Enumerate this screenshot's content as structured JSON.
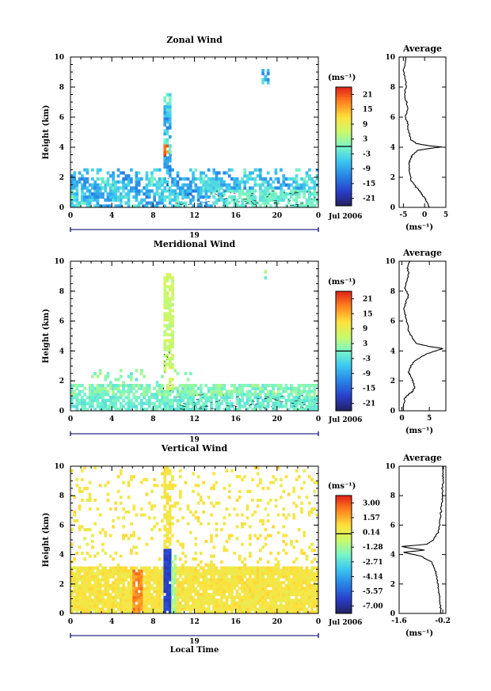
{
  "chart_data": [
    {
      "type": "heatmap",
      "title": "Zonal Wind",
      "ylabel": "Height (km)",
      "colorbar_unit": "(ms⁻¹)",
      "colorbar_ticks": [
        "21",
        "15",
        "9",
        "3",
        "-3",
        "-9",
        "-15",
        "-21"
      ],
      "xticks": [
        "0",
        "4",
        "8",
        "12",
        "16",
        "20",
        "0"
      ],
      "yticks": [
        "0",
        "2",
        "4",
        "6",
        "8",
        "10"
      ],
      "day_label": "19",
      "date_label": "Jul 2006",
      "xlim": [
        0,
        24
      ],
      "ylim": [
        0,
        10
      ],
      "clim": [
        -24,
        24
      ],
      "profile": {
        "title": "Average",
        "xlabel": "(ms⁻¹)",
        "xticks": [
          "-5",
          "0",
          "5"
        ],
        "yticks": [
          "0",
          "2",
          "4",
          "6",
          "8",
          "10"
        ],
        "xlim": [
          -6,
          5
        ],
        "points": [
          [
            1.2,
            0.0
          ],
          [
            0.8,
            0.2
          ],
          [
            0.3,
            0.5
          ],
          [
            -0.5,
            0.8
          ],
          [
            -1.2,
            1.1
          ],
          [
            -2.2,
            1.4
          ],
          [
            -3.0,
            1.7
          ],
          [
            -3.5,
            2.1
          ],
          [
            -3.7,
            2.5
          ],
          [
            -3.6,
            2.9
          ],
          [
            -3.4,
            3.2
          ],
          [
            -2.8,
            3.5
          ],
          [
            -1.5,
            3.8
          ],
          [
            2.0,
            3.95
          ],
          [
            4.0,
            4.02
          ],
          [
            1.0,
            4.1
          ],
          [
            -2.0,
            4.25
          ],
          [
            -3.2,
            4.5
          ],
          [
            -3.8,
            5.0
          ],
          [
            -4.0,
            5.6
          ],
          [
            -4.5,
            6.0
          ],
          [
            -4.0,
            6.5
          ],
          [
            -4.2,
            7.0
          ],
          [
            -4.8,
            7.5
          ],
          [
            -4.3,
            8.0
          ],
          [
            -4.5,
            8.5
          ],
          [
            -5.0,
            9.0
          ],
          [
            -4.6,
            9.5
          ],
          [
            -4.4,
            10.0
          ]
        ]
      }
    },
    {
      "type": "heatmap",
      "title": "Meridional Wind",
      "ylabel": "Height (km)",
      "colorbar_unit": "(ms⁻¹)",
      "colorbar_ticks": [
        "21",
        "15",
        "9",
        "3",
        "-3",
        "-9",
        "-15",
        "-21"
      ],
      "xticks": [
        "0",
        "4",
        "8",
        "12",
        "16",
        "20",
        "0"
      ],
      "yticks": [
        "0",
        "2",
        "4",
        "6",
        "8",
        "10"
      ],
      "day_label": "19",
      "date_label": "Jul 2006",
      "xlim": [
        0,
        24
      ],
      "ylim": [
        0,
        10
      ],
      "clim": [
        -24,
        24
      ],
      "profile": {
        "title": "Average",
        "xlabel": "(ms⁻¹)",
        "xticks": [
          "0",
          "5"
        ],
        "yticks": [
          "0",
          "2",
          "4",
          "6",
          "8",
          "10"
        ],
        "xlim": [
          -0.5,
          8
        ],
        "points": [
          [
            0.2,
            0.0
          ],
          [
            0.3,
            0.4
          ],
          [
            0.5,
            0.8
          ],
          [
            1.2,
            1.1
          ],
          [
            2.0,
            1.3
          ],
          [
            2.3,
            1.6
          ],
          [
            2.0,
            2.0
          ],
          [
            1.6,
            2.3
          ],
          [
            1.2,
            2.6
          ],
          [
            1.5,
            2.9
          ],
          [
            2.0,
            3.2
          ],
          [
            3.0,
            3.5
          ],
          [
            4.5,
            3.8
          ],
          [
            6.5,
            4.05
          ],
          [
            7.5,
            4.15
          ],
          [
            5.0,
            4.3
          ],
          [
            2.5,
            4.5
          ],
          [
            1.8,
            4.9
          ],
          [
            1.3,
            5.3
          ],
          [
            1.0,
            5.8
          ],
          [
            0.7,
            6.3
          ],
          [
            0.4,
            6.8
          ],
          [
            0.8,
            7.3
          ],
          [
            1.2,
            7.7
          ],
          [
            0.6,
            8.2
          ],
          [
            0.9,
            8.7
          ],
          [
            1.3,
            9.2
          ],
          [
            1.0,
            9.6
          ],
          [
            1.5,
            10.0
          ]
        ]
      }
    },
    {
      "type": "heatmap",
      "title": "Vertical Wind",
      "ylabel": "Height (km)",
      "xlabel": "Local Time",
      "colorbar_unit": "(ms⁻¹)",
      "colorbar_ticks": [
        "3.00",
        "1.57",
        "0.14",
        "-1.28",
        "-2.71",
        "-4.14",
        "-5.57",
        "-7.00"
      ],
      "xticks": [
        "0",
        "4",
        "8",
        "12",
        "16",
        "20",
        "0"
      ],
      "yticks": [
        "0",
        "2",
        "4",
        "6",
        "8",
        "10"
      ],
      "day_label": "19",
      "date_label": "Jul 2006",
      "xlim": [
        0,
        24
      ],
      "ylim": [
        0,
        10
      ],
      "clim": [
        -7.7,
        3.7
      ],
      "profile": {
        "title": "Average",
        "xlabel": "(ms⁻¹)",
        "xticks": [
          "-1.6",
          "-0.2"
        ],
        "yticks": [
          "0",
          "2",
          "4",
          "6",
          "8",
          "10"
        ],
        "xlim": [
          -1.6,
          -0.1
        ],
        "points": [
          [
            -0.25,
            0.0
          ],
          [
            -0.28,
            0.5
          ],
          [
            -0.3,
            1.0
          ],
          [
            -0.32,
            1.5
          ],
          [
            -0.35,
            2.0
          ],
          [
            -0.4,
            2.5
          ],
          [
            -0.45,
            3.0
          ],
          [
            -0.55,
            3.5
          ],
          [
            -0.9,
            3.9
          ],
          [
            -1.45,
            4.15
          ],
          [
            -0.8,
            4.3
          ],
          [
            -1.3,
            4.45
          ],
          [
            -1.5,
            4.55
          ],
          [
            -0.7,
            4.7
          ],
          [
            -0.5,
            5.0
          ],
          [
            -0.35,
            5.5
          ],
          [
            -0.3,
            6.0
          ],
          [
            -0.28,
            6.5
          ],
          [
            -0.25,
            7.0
          ],
          [
            -0.22,
            7.5
          ],
          [
            -0.2,
            8.0
          ],
          [
            -0.22,
            8.5
          ],
          [
            -0.18,
            9.0
          ],
          [
            -0.2,
            9.5
          ],
          [
            -0.17,
            10.0
          ]
        ]
      }
    }
  ]
}
